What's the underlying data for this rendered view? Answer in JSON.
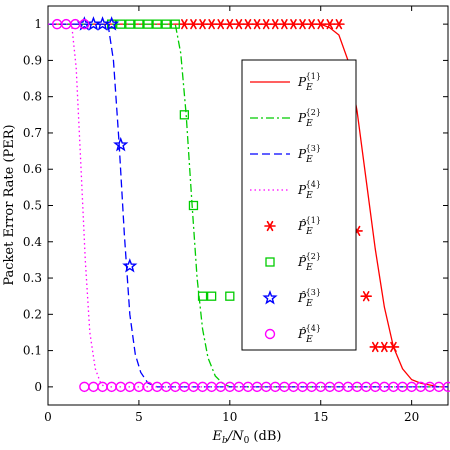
{
  "chart_data": {
    "type": "line",
    "xlabel": "E_b/N_0 (dB)",
    "xlabel_parts": {
      "main": "E",
      "sub1": "b",
      "slash": "/N",
      "sub2": "0",
      "unit": " (dB)"
    },
    "ylabel": "Packet Error Rate (PER)",
    "xlim": [
      0,
      22
    ],
    "ylim": [
      -0.05,
      1.05
    ],
    "xticks": [
      0,
      5,
      10,
      15,
      20
    ],
    "yticks": [
      0,
      0.1,
      0.2,
      0.3,
      0.4,
      0.5,
      0.6,
      0.7,
      0.8,
      0.9,
      1
    ],
    "ytick_labels": [
      "0",
      "0.1",
      "0.2",
      "0.3",
      "0.4",
      "0.5",
      "0.6",
      "0.7",
      "0.8",
      "0.9",
      "1"
    ],
    "xtick_labels": [
      "0",
      "5",
      "10",
      "15",
      "20"
    ],
    "legend_position": "right",
    "series": [
      {
        "name": "P_E^{1}",
        "name_base": "P",
        "name_sub": "E",
        "name_sup": "{1}",
        "kind": "line",
        "style": "solid",
        "color": "#ff0000",
        "x": [
          0,
          15,
          15.5,
          16,
          16.5,
          17,
          17.5,
          18,
          18.5,
          19,
          19.5,
          20,
          20.5,
          21,
          21.5,
          22
        ],
        "y": [
          1,
          1,
          0.99,
          0.97,
          0.9,
          0.76,
          0.57,
          0.38,
          0.22,
          0.11,
          0.05,
          0.02,
          0.01,
          0.005,
          0,
          0
        ]
      },
      {
        "name": "P_E^{2}",
        "name_base": "P",
        "name_sub": "E",
        "name_sup": "{2}",
        "kind": "line",
        "style": "dashdot",
        "color": "#00cc00",
        "x": [
          0,
          7.0,
          7.3,
          7.6,
          7.9,
          8.2,
          8.5,
          8.8,
          9.2,
          9.6,
          10,
          22
        ],
        "y": [
          1,
          1,
          0.92,
          0.75,
          0.52,
          0.3,
          0.16,
          0.08,
          0.03,
          0.01,
          0,
          0
        ]
      },
      {
        "name": "P_E^{3}",
        "name_base": "P",
        "name_sub": "E",
        "name_sup": "{3}",
        "kind": "line",
        "style": "dashed",
        "color": "#0000ff",
        "x": [
          0,
          3.3,
          3.6,
          3.9,
          4.2,
          4.5,
          4.8,
          5.1,
          5.5,
          6,
          22
        ],
        "y": [
          1,
          1,
          0.9,
          0.68,
          0.42,
          0.2,
          0.09,
          0.04,
          0.01,
          0,
          0
        ]
      },
      {
        "name": "P_E^{4}",
        "name_base": "P",
        "name_sub": "E",
        "name_sup": "{4}",
        "kind": "line",
        "style": "dotted",
        "color": "#ff00ff",
        "x": [
          0,
          1.3,
          1.55,
          1.8,
          2.05,
          2.3,
          2.6,
          2.9,
          3.1,
          22
        ],
        "y": [
          1,
          1,
          0.88,
          0.62,
          0.35,
          0.15,
          0.05,
          0.01,
          0,
          0
        ]
      },
      {
        "name": "P̂_E^{1}",
        "name_base": "P̂",
        "name_sub": "E",
        "name_sup": "{1}",
        "kind": "markers",
        "marker": "asterisk",
        "color": "#ff0000",
        "x": [
          7.5,
          8,
          8.5,
          9,
          9.5,
          10,
          10.5,
          11,
          11.5,
          12,
          12.5,
          13,
          13.5,
          14,
          14.5,
          15,
          15.5,
          16,
          16.5,
          17,
          17.5,
          18,
          18.5,
          19
        ],
        "y": [
          1,
          1,
          1,
          1,
          1,
          1,
          1,
          1,
          1,
          1,
          1,
          1,
          1,
          1,
          1,
          1,
          1,
          1,
          0.83,
          0.43,
          0.25,
          0.11,
          0.11,
          0.11
        ]
      },
      {
        "name": "P̂_E^{2}",
        "name_base": "P̂",
        "name_sub": "E",
        "name_sup": "{2}",
        "kind": "markers",
        "marker": "square",
        "color": "#00cc00",
        "x": [
          3.5,
          4,
          4.5,
          5,
          5.5,
          6,
          6.5,
          7,
          7.5,
          8,
          8.5,
          9,
          10
        ],
        "y": [
          1,
          1,
          1,
          1,
          1,
          1,
          1,
          1,
          0.75,
          0.5,
          0.25,
          0.25,
          0.25
        ]
      },
      {
        "name": "P̂_E^{3}",
        "name_base": "P̂",
        "name_sub": "E",
        "name_sup": "{3}",
        "kind": "markers",
        "marker": "star",
        "color": "#0000ff",
        "x": [
          2,
          2.5,
          3,
          3.5,
          4,
          4.5
        ],
        "y": [
          1,
          1,
          1,
          1,
          0.667,
          0.333
        ]
      },
      {
        "name": "P̂_E^{4}",
        "name_base": "P̂",
        "name_sub": "E",
        "name_sup": "{4}",
        "kind": "markers",
        "marker": "circle",
        "color": "#ff00ff",
        "x": [
          0.5,
          1,
          1.5,
          2,
          2,
          2.5,
          3,
          3.5,
          4,
          4.5,
          5,
          5.5,
          6,
          6.5,
          7,
          7.5,
          8,
          8.5,
          9,
          9.5,
          10,
          10.5,
          11,
          11.5,
          12,
          12.5,
          13,
          13.5,
          14,
          14.5,
          15,
          15.5,
          16,
          16.5,
          17,
          17.5,
          18,
          18.5,
          19,
          19.5,
          20,
          20.5,
          21,
          21.5,
          22
        ],
        "y": [
          1,
          1,
          1,
          1,
          0,
          0,
          0,
          0,
          0,
          0,
          0,
          0,
          0,
          0,
          0,
          0,
          0,
          0,
          0,
          0,
          0,
          0,
          0,
          0,
          0,
          0,
          0,
          0,
          0,
          0,
          0,
          0,
          0,
          0,
          0,
          0,
          0,
          0,
          0,
          0,
          0,
          0,
          0,
          0,
          0
        ]
      }
    ]
  }
}
